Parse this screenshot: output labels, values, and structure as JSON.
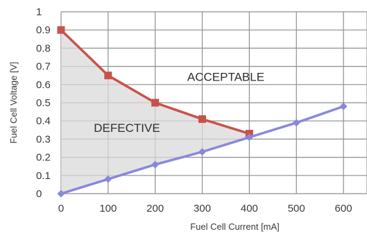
{
  "chart_data": {
    "type": "line",
    "xlabel": "Fuel Cell Current [mA]",
    "ylabel": "Fuel Cell Voltage [V]",
    "xlim": [
      0,
      650
    ],
    "ylim": [
      0,
      1
    ],
    "x_ticks": [
      "0",
      "100",
      "200",
      "300",
      "400",
      "500",
      "600"
    ],
    "y_ticks": [
      "0",
      "0.1",
      "0.2",
      "0.3",
      "0.4",
      "0.5",
      "0.6",
      "0.7",
      "0.8",
      "0.9",
      "1"
    ],
    "grid": true,
    "series": [
      {
        "color": "#c8524a",
        "marker": "square",
        "x": [
          0,
          100,
          200,
          300,
          400
        ],
        "y": [
          0.9,
          0.65,
          0.5,
          0.41,
          0.33
        ]
      },
      {
        "color": "#8888dd",
        "marker": "diamond",
        "x": [
          0,
          100,
          200,
          300,
          400,
          500,
          600
        ],
        "y": [
          0.0,
          0.08,
          0.16,
          0.23,
          0.31,
          0.39,
          0.48
        ]
      }
    ],
    "annotations": [
      {
        "text": "ACCEPTABLE",
        "x": 350,
        "y": 0.62
      },
      {
        "text": "DEFECTIVE",
        "x": 140,
        "y": 0.34
      }
    ],
    "shaded_region_color": "#d9d9d9"
  }
}
